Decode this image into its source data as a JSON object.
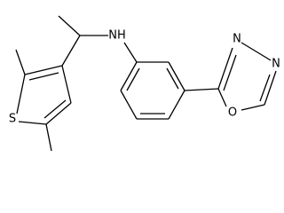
{
  "atoms": {
    "sulfur": "S",
    "amine": "NH",
    "nitrogen_3": "N",
    "nitrogen_4": "N",
    "oxygen": "O"
  }
}
